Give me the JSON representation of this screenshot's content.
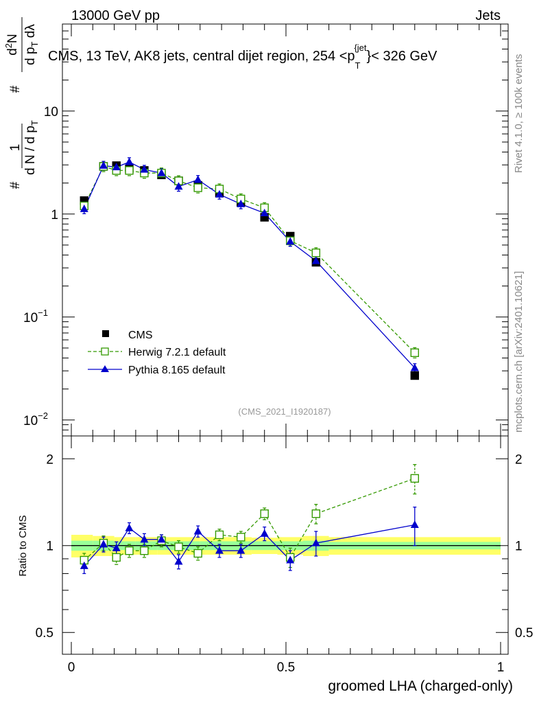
{
  "header": {
    "energy_label": "13000 GeV pp",
    "category_label": "Jets"
  },
  "side_labels": {
    "rivet": "Rivet 4.1.0, ≥ 100k events",
    "mcplots": "mcplots.cern.ch [arXiv:2401.10621]"
  },
  "watermark": "(CMS_2021_I1920187)",
  "chart_data": [
    {
      "type": "line",
      "panel": "main",
      "title": "CMS, 13 TeV, AK8 jets, central dijet region, 254 <p_T^{jet}< 326 GeV",
      "title_main": "CMS, 13 TeV, AK8 jets, central dijet region, 254 <p",
      "title_sub": "T",
      "title_sup": "{jet",
      "title_end": "}< 326 GeV",
      "xlabel": "groomed LHA (charged-only)",
      "ylabel": "1 / (dN/dp_T) · d²N/(dp_T dλ)",
      "yscale": "log",
      "xlim": [
        0,
        1
      ],
      "ylim": [
        0.007,
        70
      ],
      "yticks": [
        {
          "value": 10,
          "label": "10"
        },
        {
          "value": 1,
          "label": "1"
        },
        {
          "value": 0.1,
          "label": "10",
          "exp": "−1"
        },
        {
          "value": 0.01,
          "label": "10",
          "exp": "−2"
        }
      ],
      "legend_position": "lower-left",
      "series": [
        {
          "name": "CMS",
          "style": "black filled square",
          "x": [
            0.03,
            0.075,
            0.105,
            0.135,
            0.17,
            0.21,
            0.25,
            0.295,
            0.345,
            0.395,
            0.45,
            0.51,
            0.57,
            0.8
          ],
          "y": [
            1.35,
            2.9,
            2.95,
            2.75,
            2.65,
            2.4,
            2.1,
            1.9,
            1.6,
            1.3,
            0.93,
            0.61,
            0.34,
            0.027
          ]
        },
        {
          "name": "Herwig 7.2.1 default",
          "style": "green dashed, open square",
          "color": "#339900",
          "x": [
            0.03,
            0.075,
            0.105,
            0.135,
            0.17,
            0.21,
            0.25,
            0.295,
            0.345,
            0.395,
            0.45,
            0.51,
            0.57,
            0.8
          ],
          "y": [
            1.2,
            2.9,
            2.65,
            2.65,
            2.5,
            2.5,
            2.1,
            1.8,
            1.75,
            1.4,
            1.15,
            0.55,
            0.42,
            0.045
          ]
        },
        {
          "name": "Pythia 8.165 default",
          "style": "blue solid, filled triangle",
          "color": "#0000cc",
          "x": [
            0.03,
            0.075,
            0.105,
            0.135,
            0.17,
            0.21,
            0.25,
            0.295,
            0.345,
            0.395,
            0.45,
            0.51,
            0.57,
            0.8
          ],
          "y": [
            1.12,
            2.95,
            2.85,
            3.2,
            2.7,
            2.5,
            1.85,
            2.15,
            1.55,
            1.25,
            1.02,
            0.54,
            0.35,
            0.032
          ]
        }
      ]
    },
    {
      "type": "line",
      "panel": "ratio",
      "ylabel": "Ratio to CMS",
      "xlabel": "groomed LHA (charged-only)",
      "yscale": "log",
      "xlim": [
        0,
        1
      ],
      "ylim": [
        0.42,
        2.4
      ],
      "yticks": [
        {
          "value": 2,
          "label": "2"
        },
        {
          "value": 1,
          "label": "1"
        },
        {
          "value": 0.5,
          "label": "0.5"
        }
      ],
      "xticks": [
        {
          "value": 0,
          "label": "0"
        },
        {
          "value": 0.5,
          "label": "0.5"
        },
        {
          "value": 1,
          "label": "1"
        }
      ],
      "uncertainty_band": {
        "bins": [
          0,
          0.05,
          0.1,
          0.15,
          0.2,
          0.25,
          0.3,
          0.35,
          0.42,
          0.48,
          0.54,
          0.6,
          1.0
        ],
        "inner": [
          0.04,
          0.04,
          0.035,
          0.035,
          0.035,
          0.035,
          0.035,
          0.035,
          0.035,
          0.035,
          0.04,
          0.03
        ],
        "outer": [
          0.09,
          0.08,
          0.07,
          0.07,
          0.07,
          0.07,
          0.07,
          0.07,
          0.065,
          0.07,
          0.08,
          0.07
        ],
        "inner_color": "#99ff99",
        "outer_color": "#ffff66"
      },
      "series": [
        {
          "name": "Herwig 7.2.1 default",
          "color": "#339900",
          "x": [
            0.03,
            0.075,
            0.105,
            0.135,
            0.17,
            0.21,
            0.25,
            0.295,
            0.345,
            0.395,
            0.45,
            0.51,
            0.57,
            0.8
          ],
          "y": [
            0.89,
            1.02,
            0.91,
            0.96,
            0.96,
            1.04,
            0.99,
            0.94,
            1.09,
            1.07,
            1.29,
            0.91,
            1.29,
            1.71
          ],
          "err": [
            0.05,
            0.06,
            0.05,
            0.05,
            0.05,
            0.05,
            0.05,
            0.05,
            0.05,
            0.05,
            0.06,
            0.07,
            0.1,
            0.2
          ]
        },
        {
          "name": "Pythia 8.165 default",
          "color": "#0000cc",
          "x": [
            0.03,
            0.075,
            0.105,
            0.135,
            0.17,
            0.21,
            0.25,
            0.295,
            0.345,
            0.395,
            0.45,
            0.51,
            0.57,
            0.8
          ],
          "y": [
            0.85,
            1.01,
            0.98,
            1.15,
            1.05,
            1.05,
            0.88,
            1.12,
            0.96,
            0.96,
            1.1,
            0.89,
            1.02,
            1.18
          ],
          "err": [
            0.05,
            0.06,
            0.05,
            0.05,
            0.05,
            0.04,
            0.05,
            0.05,
            0.05,
            0.05,
            0.06,
            0.07,
            0.1,
            0.18
          ]
        }
      ]
    }
  ]
}
